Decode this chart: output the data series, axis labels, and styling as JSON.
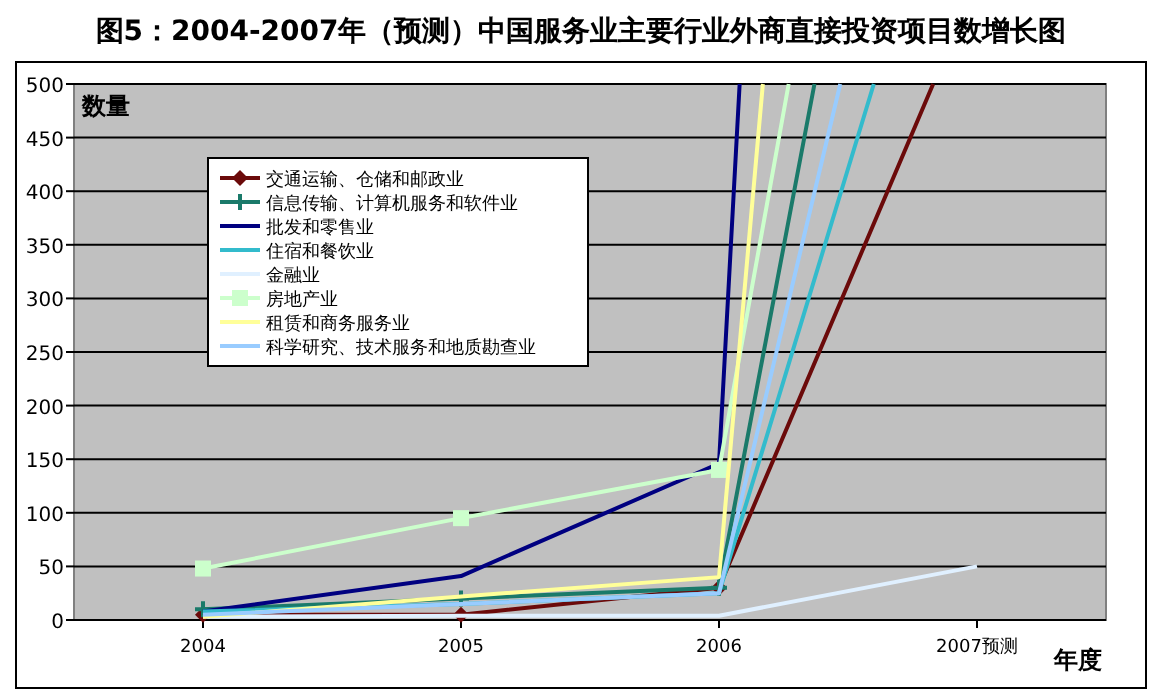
{
  "chart_data": {
    "type": "line",
    "title": "图5：2004-2007年（预测）中国服务业主要行业外商直接投资项目数增长图",
    "ylabel": "数量",
    "xlabel": "年度",
    "xlim": [
      2003.5,
      2007.5
    ],
    "xticks": [
      2004,
      2005,
      2006,
      {
        "value": 2007,
        "label": "2007预测"
      }
    ],
    "ylim": [
      0,
      500
    ],
    "yticks": [
      0,
      50,
      100,
      150,
      200,
      250,
      300,
      350,
      400,
      450,
      500
    ],
    "grid": "y",
    "legend": "top left",
    "series": [
      {
        "name": "交通运输、仓储和邮政业",
        "color": "#6b0a0a",
        "marker": "diamond",
        "x": [
          2004,
          2005,
          2006,
          2006.83
        ],
        "values": [
          5,
          5,
          30,
          500
        ]
      },
      {
        "name": "信息传输、计算机服务和软件业",
        "color": "#1a7a6a",
        "marker": "cross",
        "x": [
          2004,
          2005,
          2006,
          2006.37
        ],
        "values": [
          10,
          20,
          30,
          500
        ]
      },
      {
        "name": "批发和零售业",
        "color": "#000080",
        "x": [
          2004,
          2005,
          2006,
          2006.08
        ],
        "values": [
          8,
          41,
          146,
          500
        ]
      },
      {
        "name": "住宿和餐饮业",
        "color": "#33bbcc",
        "x": [
          2004,
          2005,
          2006,
          2006.6
        ],
        "values": [
          8,
          15,
          25,
          500
        ]
      },
      {
        "name": "金融业",
        "color": "#e0f0ff",
        "x": [
          2004,
          2005,
          2006,
          2007
        ],
        "values": [
          3,
          4,
          4,
          50
        ]
      },
      {
        "name": "房地产业",
        "color": "#ccffcc",
        "marker": "square",
        "x": [
          2004,
          2005,
          2006,
          2006.27
        ],
        "values": [
          48,
          95,
          140,
          500
        ]
      },
      {
        "name": "租赁和商务服务业",
        "color": "#ffff99",
        "x": [
          2004,
          2005,
          2006,
          2006.17
        ],
        "values": [
          3,
          22,
          40,
          500
        ]
      },
      {
        "name": "科学研究、技术服务和地质勘查业",
        "color": "#99ccff",
        "x": [
          2004,
          2005,
          2006,
          2006.47
        ],
        "values": [
          5,
          15,
          25,
          500
        ]
      }
    ]
  }
}
